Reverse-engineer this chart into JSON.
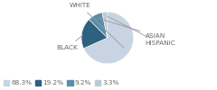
{
  "labels": [
    "WHITE",
    "BLACK",
    "ASIAN",
    "HISPANIC"
  ],
  "values": [
    68.3,
    19.2,
    9.2,
    3.3
  ],
  "colors": [
    "#c8d4e3",
    "#2e6080",
    "#5a8fa8",
    "#bfc9d1"
  ],
  "legend_labels": [
    "68.3%",
    "19.2%",
    "9.2%",
    "3.3%"
  ],
  "startangle": 90,
  "font_size": 5.2,
  "legend_font_size": 5.2,
  "text_color": "#666666",
  "line_color": "#999999"
}
